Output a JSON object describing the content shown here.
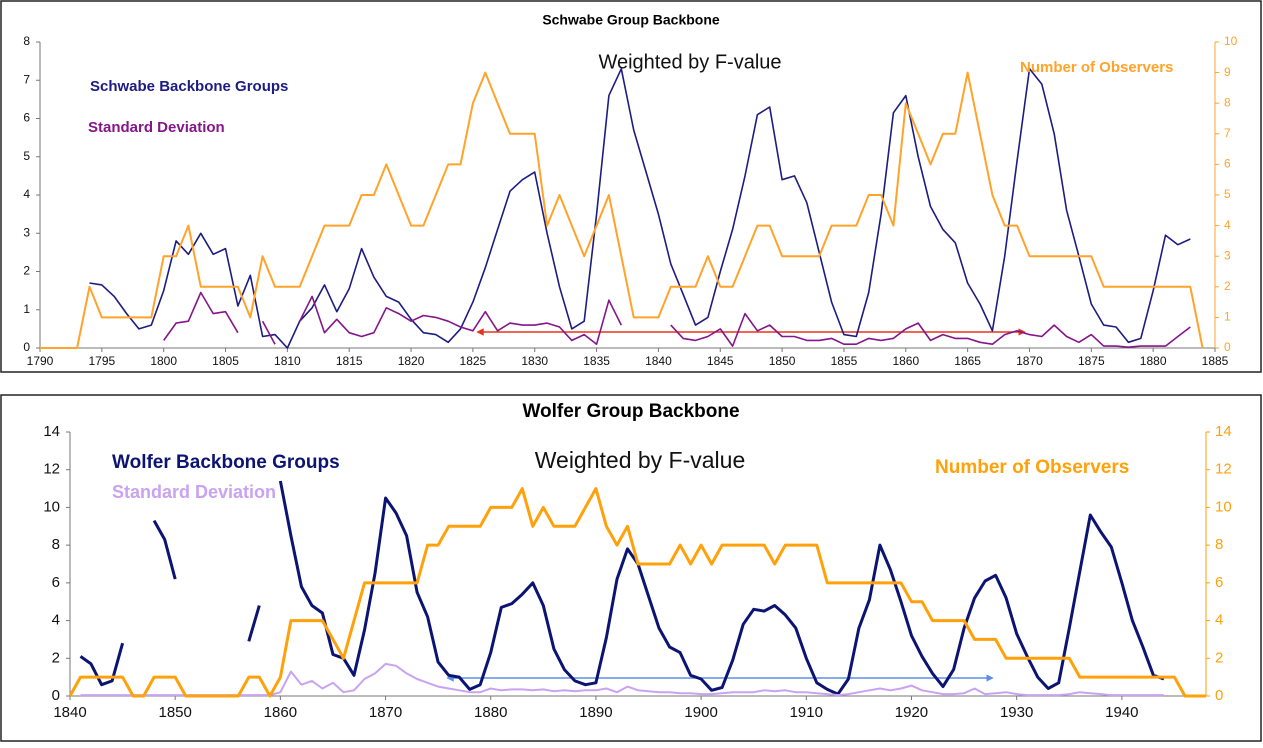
{
  "chart_data": [
    {
      "type": "line",
      "title": "Schwabe Group Backbone",
      "annotation": "Weighted by F-value",
      "x": [
        1790,
        1791,
        1792,
        1793,
        1794,
        1795,
        1796,
        1797,
        1798,
        1799,
        1800,
        1801,
        1802,
        1803,
        1804,
        1805,
        1806,
        1807,
        1808,
        1809,
        1810,
        1811,
        1812,
        1813,
        1814,
        1815,
        1816,
        1817,
        1818,
        1819,
        1820,
        1821,
        1822,
        1823,
        1824,
        1825,
        1826,
        1827,
        1828,
        1829,
        1830,
        1831,
        1832,
        1833,
        1834,
        1835,
        1836,
        1837,
        1838,
        1839,
        1840,
        1841,
        1842,
        1843,
        1844,
        1845,
        1846,
        1847,
        1848,
        1849,
        1850,
        1851,
        1852,
        1853,
        1854,
        1855,
        1856,
        1857,
        1858,
        1859,
        1860,
        1861,
        1862,
        1863,
        1864,
        1865,
        1866,
        1867,
        1868,
        1869,
        1870,
        1871,
        1872,
        1873,
        1874,
        1875,
        1876,
        1877,
        1878,
        1879,
        1880,
        1881,
        1882,
        1883,
        1884
      ],
      "xlim": [
        1790,
        1885
      ],
      "xticks": [
        1790,
        1795,
        1800,
        1805,
        1810,
        1815,
        1820,
        1825,
        1830,
        1835,
        1840,
        1845,
        1850,
        1855,
        1860,
        1865,
        1870,
        1875,
        1880,
        1885
      ],
      "ylim": [
        0,
        8
      ],
      "yticks": [
        0,
        1,
        2,
        3,
        4,
        5,
        6,
        7,
        8
      ],
      "y2lim": [
        0,
        10
      ],
      "y2ticks": [
        0,
        1,
        2,
        3,
        4,
        5,
        6,
        7,
        8,
        9,
        10
      ],
      "series": [
        {
          "name": "Schwabe Backbone Groups",
          "color": "#1c1c82",
          "values": [
            null,
            null,
            null,
            null,
            1.7,
            1.65,
            1.35,
            0.9,
            0.5,
            0.6,
            1.5,
            2.8,
            2.45,
            3.0,
            2.45,
            2.6,
            1.1,
            1.9,
            0.3,
            0.35,
            0,
            0.7,
            1.05,
            1.65,
            0.95,
            1.55,
            2.6,
            1.85,
            1.35,
            1.2,
            0.75,
            0.4,
            0.35,
            0.15,
            0.5,
            1.2,
            2.1,
            3.1,
            4.1,
            4.4,
            4.6,
            3.0,
            1.6,
            0.5,
            0.7,
            3.5,
            6.6,
            7.3,
            5.7,
            4.6,
            3.5,
            2.2,
            1.4,
            0.6,
            0.8,
            2.0,
            3.1,
            4.5,
            6.1,
            6.3,
            4.4,
            4.5,
            3.8,
            2.5,
            1.2,
            0.35,
            0.3,
            1.45,
            3.5,
            6.15,
            6.6,
            5.0,
            3.7,
            3.1,
            2.75,
            1.7,
            1.15,
            0.45,
            2.4,
            4.9,
            7.3,
            6.9,
            5.6,
            3.6,
            2.4,
            1.15,
            0.6,
            0.55,
            0.15,
            0.25,
            1.5,
            2.95,
            2.7,
            2.85,
            null
          ]
        },
        {
          "name": "Standard Deviation",
          "color": "#84168a",
          "values": [
            null,
            null,
            null,
            null,
            null,
            null,
            null,
            null,
            null,
            null,
            0.2,
            0.65,
            0.7,
            1.45,
            0.9,
            0.95,
            0.4,
            null,
            0.7,
            0.1,
            null,
            0.7,
            1.35,
            0.4,
            0.75,
            0.4,
            0.3,
            0.4,
            1.05,
            0.9,
            0.7,
            0.85,
            0.8,
            0.7,
            0.55,
            0.45,
            0.95,
            0.45,
            0.65,
            0.6,
            0.6,
            0.65,
            0.55,
            0.2,
            0.35,
            0.1,
            1.25,
            0.6,
            null,
            null,
            null,
            0.6,
            0.25,
            0.2,
            0.3,
            0.5,
            0.05,
            0.9,
            0.45,
            0.6,
            0.3,
            0.3,
            0.2,
            0.2,
            0.25,
            0.1,
            0.1,
            0.25,
            0.2,
            0.25,
            0.5,
            0.65,
            0.2,
            0.35,
            0.25,
            0.25,
            0.15,
            0.1,
            0.35,
            0.45,
            0.35,
            0.3,
            0.6,
            0.3,
            0.15,
            0.35,
            0.05,
            0.05,
            0.02,
            0.05,
            0.05,
            0.05,
            0.3,
            0.55,
            null
          ]
        },
        {
          "name": "Number of  Observers",
          "color": "#ffa32a",
          "axis": "y2",
          "values": [
            0,
            0,
            0,
            0,
            2,
            1,
            1,
            1,
            1,
            1,
            3,
            3,
            4,
            2,
            2,
            2,
            2,
            1,
            3,
            2,
            2,
            2,
            3,
            4,
            4,
            4,
            5,
            5,
            6,
            5,
            4,
            4,
            5,
            6,
            6,
            8,
            9,
            8,
            7,
            7,
            7,
            4,
            5,
            4,
            3,
            4,
            5,
            3,
            1,
            1,
            1,
            2,
            2,
            2,
            3,
            2,
            2,
            3,
            4,
            4,
            3,
            3,
            3,
            3,
            4,
            4,
            4,
            5,
            5,
            4,
            8,
            7,
            6,
            7,
            7,
            9,
            7,
            5,
            4,
            4,
            3,
            3,
            3,
            3,
            3,
            3,
            2,
            2,
            2,
            2,
            2,
            2,
            2,
            2,
            0
          ]
        }
      ]
    },
    {
      "type": "line",
      "title": "Wolfer Group Backbone",
      "annotation": "Weighted by F-value",
      "x": [
        1840,
        1841,
        1842,
        1843,
        1844,
        1845,
        1846,
        1847,
        1848,
        1849,
        1850,
        1851,
        1852,
        1853,
        1854,
        1855,
        1856,
        1857,
        1858,
        1859,
        1860,
        1861,
        1862,
        1863,
        1864,
        1865,
        1866,
        1867,
        1868,
        1869,
        1870,
        1871,
        1872,
        1873,
        1874,
        1875,
        1876,
        1877,
        1878,
        1879,
        1880,
        1881,
        1882,
        1883,
        1884,
        1885,
        1886,
        1887,
        1888,
        1889,
        1890,
        1891,
        1892,
        1893,
        1894,
        1895,
        1896,
        1897,
        1898,
        1899,
        1900,
        1901,
        1902,
        1903,
        1904,
        1905,
        1906,
        1907,
        1908,
        1909,
        1910,
        1911,
        1912,
        1913,
        1914,
        1915,
        1916,
        1917,
        1918,
        1919,
        1920,
        1921,
        1922,
        1923,
        1924,
        1925,
        1926,
        1927,
        1928,
        1929,
        1930,
        1931,
        1932,
        1933,
        1934,
        1935,
        1936,
        1937,
        1938,
        1939,
        1940,
        1941,
        1942,
        1943,
        1944,
        1945,
        1946,
        1947,
        1948
      ],
      "xlim": [
        1840,
        1948
      ],
      "xticks": [
        1840,
        1850,
        1860,
        1870,
        1880,
        1890,
        1900,
        1910,
        1920,
        1930,
        1940
      ],
      "ylim": [
        0,
        14
      ],
      "yticks": [
        0,
        2,
        4,
        6,
        8,
        10,
        12,
        14
      ],
      "y2lim": [
        0,
        14
      ],
      "y2ticks": [
        0,
        2,
        4,
        6,
        8,
        10,
        12,
        14
      ],
      "series": [
        {
          "name": "Wolfer Backbone Groups",
          "color": "#0c1473",
          "values": [
            null,
            2.1,
            1.7,
            0.6,
            0.8,
            2.8,
            null,
            null,
            9.3,
            8.3,
            6.2,
            null,
            null,
            null,
            null,
            null,
            null,
            2.9,
            4.8,
            null,
            11.4,
            8.5,
            5.8,
            4.8,
            4.4,
            2.2,
            2.0,
            1.1,
            3.5,
            6.5,
            10.5,
            9.7,
            8.5,
            5.5,
            4.2,
            1.8,
            1.1,
            1.0,
            0.35,
            0.6,
            2.3,
            4.7,
            4.9,
            5.4,
            6.0,
            4.8,
            2.5,
            1.4,
            0.8,
            0.6,
            0.7,
            3.1,
            6.2,
            7.8,
            7.0,
            5.3,
            3.6,
            2.6,
            2.3,
            1.1,
            0.9,
            0.3,
            0.45,
            1.9,
            3.8,
            4.6,
            4.5,
            4.8,
            4.3,
            3.6,
            2.0,
            0.7,
            0.35,
            0.1,
            0.9,
            3.6,
            5.1,
            8.0,
            6.7,
            5.0,
            3.2,
            2.1,
            1.2,
            0.5,
            1.4,
            3.6,
            5.2,
            6.1,
            6.4,
            5.2,
            3.3,
            2.1,
            1.0,
            0.4,
            0.7,
            3.6,
            6.6,
            9.6,
            8.7,
            7.9,
            6.0,
            4.0,
            2.6,
            1.1,
            0.9,
            null,
            null,
            null,
            null
          ]
        },
        {
          "name": "Standard Deviation",
          "color": "#c9a3f2",
          "values": [
            null,
            0.05,
            0.05,
            0.05,
            0.05,
            0.05,
            0.05,
            0.05,
            0.05,
            0.05,
            0.05,
            0.05,
            0.05,
            0.05,
            0.05,
            0.05,
            0.05,
            0.05,
            0.05,
            0.05,
            0.2,
            1.3,
            0.6,
            0.8,
            0.4,
            0.7,
            0.2,
            0.3,
            0.9,
            1.2,
            1.7,
            1.6,
            1.2,
            0.9,
            0.7,
            0.5,
            0.4,
            0.3,
            0.2,
            0.2,
            0.4,
            0.3,
            0.35,
            0.35,
            0.3,
            0.35,
            0.25,
            0.3,
            0.25,
            0.3,
            0.3,
            0.4,
            0.2,
            0.5,
            0.3,
            0.25,
            0.2,
            0.2,
            0.15,
            0.15,
            0.1,
            0.1,
            0.15,
            0.2,
            0.2,
            0.2,
            0.3,
            0.25,
            0.3,
            0.2,
            0.2,
            0.15,
            0.1,
            0.05,
            0.1,
            0.2,
            0.3,
            0.4,
            0.3,
            0.4,
            0.55,
            0.3,
            0.2,
            0.1,
            0.1,
            0.15,
            0.4,
            0.1,
            0.15,
            0.2,
            0.1,
            0.05,
            0.05,
            0.05,
            0.05,
            0.1,
            0.2,
            0.15,
            0.1,
            0.05,
            0.05,
            0.05,
            0.05,
            0.05,
            0.05,
            null,
            null,
            null,
            null
          ]
        },
        {
          "name": "Number of Observers",
          "color": "#ffa10a",
          "axis": "y2",
          "values": [
            0,
            1,
            1,
            1,
            1,
            1,
            0,
            0,
            1,
            1,
            1,
            0,
            0,
            0,
            0,
            0,
            0,
            1,
            1,
            0,
            1,
            4,
            4,
            4,
            4,
            3,
            2,
            4,
            6,
            6,
            6,
            6,
            6,
            6,
            8,
            8,
            9,
            9,
            9,
            9,
            10,
            10,
            10,
            11,
            9,
            10,
            9,
            9,
            9,
            10,
            11,
            9,
            8,
            9,
            7,
            7,
            7,
            7,
            8,
            7,
            8,
            7,
            8,
            8,
            8,
            8,
            8,
            7,
            8,
            8,
            8,
            8,
            6,
            6,
            6,
            6,
            6,
            6,
            6,
            6,
            5,
            5,
            4,
            4,
            4,
            4,
            3,
            3,
            3,
            2,
            2,
            2,
            2,
            2,
            2,
            2,
            1,
            1,
            1,
            1,
            1,
            1,
            1,
            1,
            1,
            1,
            0,
            0,
            0
          ]
        }
      ]
    }
  ]
}
